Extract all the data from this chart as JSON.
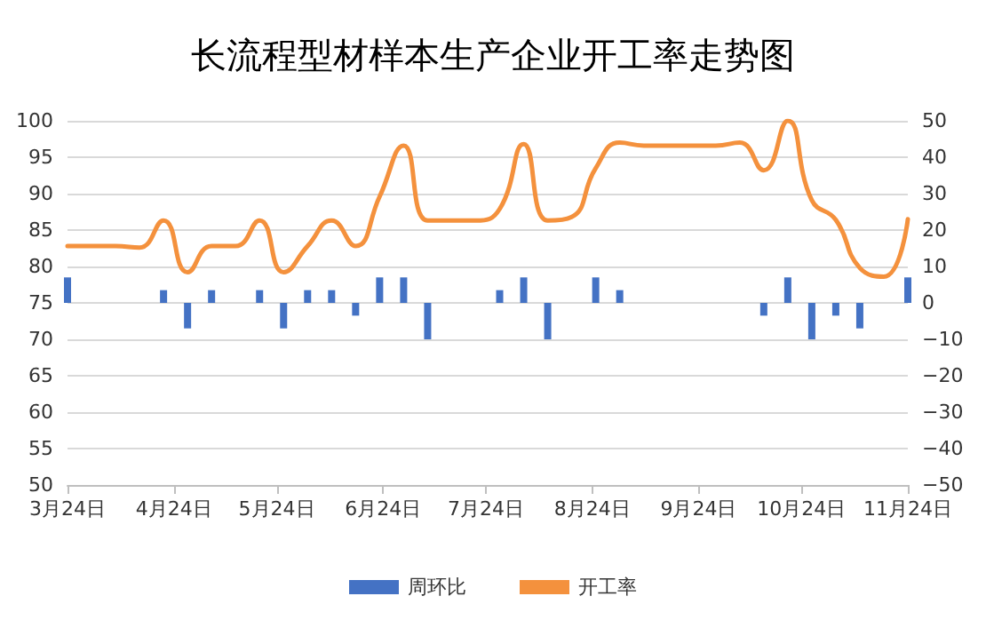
{
  "chart_data": {
    "type": "bar",
    "title": "长流程型材样本生产企业开工率走势图",
    "x": [
      "--03-24",
      "--03-31",
      "--04-07",
      "--04-14",
      "--04-21",
      "--04-28",
      "--05-05",
      "--05-12",
      "--05-19",
      "--05-26",
      "--06-02",
      "--06-09",
      "--06-16",
      "--06-23",
      "--06-30",
      "--07-07",
      "--07-14",
      "--07-21",
      "--07-28",
      "--08-04",
      "--08-11",
      "--08-18",
      "--08-25",
      "--09-01",
      "--09-08",
      "--09-15",
      "--09-22",
      "--09-29",
      "--10-06",
      "--10-13",
      "--10-20",
      "--10-27",
      "--11-03",
      "--11-10",
      "--11-17",
      "--11-24"
    ],
    "series": [
      {
        "name": "周环比",
        "axis": "y2",
        "color": "#4472c4",
        "values": [
          7,
          0,
          0,
          0,
          3.5,
          -7,
          3.5,
          0,
          3.5,
          -7,
          3.5,
          3.5,
          -3.5,
          7,
          7,
          -10,
          0,
          0,
          3.5,
          7,
          -10,
          0,
          7,
          3.5,
          0,
          0,
          0,
          0,
          0,
          -3.5,
          7,
          -10,
          -3.5,
          -7,
          0,
          7
        ]
      },
      {
        "name": "开工率",
        "type": "line",
        "color": "#f4913d",
        "values": [
          82.8,
          82.8,
          82.8,
          82.6,
          86.3,
          79.2,
          82.8,
          82.8,
          86.3,
          79.2,
          82.8,
          86.3,
          82.8,
          89.6,
          96.6,
          86.3,
          86.3,
          86.3,
          87.9,
          96.8,
          86.3,
          86.8,
          93.5,
          97,
          96.6,
          96.6,
          96.6,
          96.6,
          97,
          93.2,
          100,
          89.1,
          86.4,
          79.8,
          78.6,
          86.5
        ]
      }
    ],
    "xlim": [
      "--03-24",
      "--11-24"
    ],
    "xticks": [
      {
        "value": "--03-24",
        "label": "3月24日"
      },
      {
        "value": "--04-24",
        "label": "4月24日"
      },
      {
        "value": "--05-24",
        "label": "5月24日"
      },
      {
        "value": "--06-24",
        "label": "6月24日"
      },
      {
        "value": "--07-24",
        "label": "7月24日"
      },
      {
        "value": "--08-24",
        "label": "8月24日"
      },
      {
        "value": "--09-24",
        "label": "9月24日"
      },
      {
        "value": "--10-24",
        "label": "10月24日"
      },
      {
        "value": "--11-24",
        "label": "11月24日"
      }
    ],
    "ylim": [
      50,
      100
    ],
    "yticks": [
      50,
      55,
      60,
      65,
      70,
      75,
      80,
      85,
      90,
      95,
      100
    ],
    "y2lim": [
      -50,
      50
    ],
    "y2ticks": [
      -50,
      -40,
      -30,
      -20,
      -10,
      0,
      10,
      20,
      30,
      40,
      50
    ],
    "grid": "y",
    "legend": "bottom",
    "marker": "none",
    "line_style": "solid"
  }
}
